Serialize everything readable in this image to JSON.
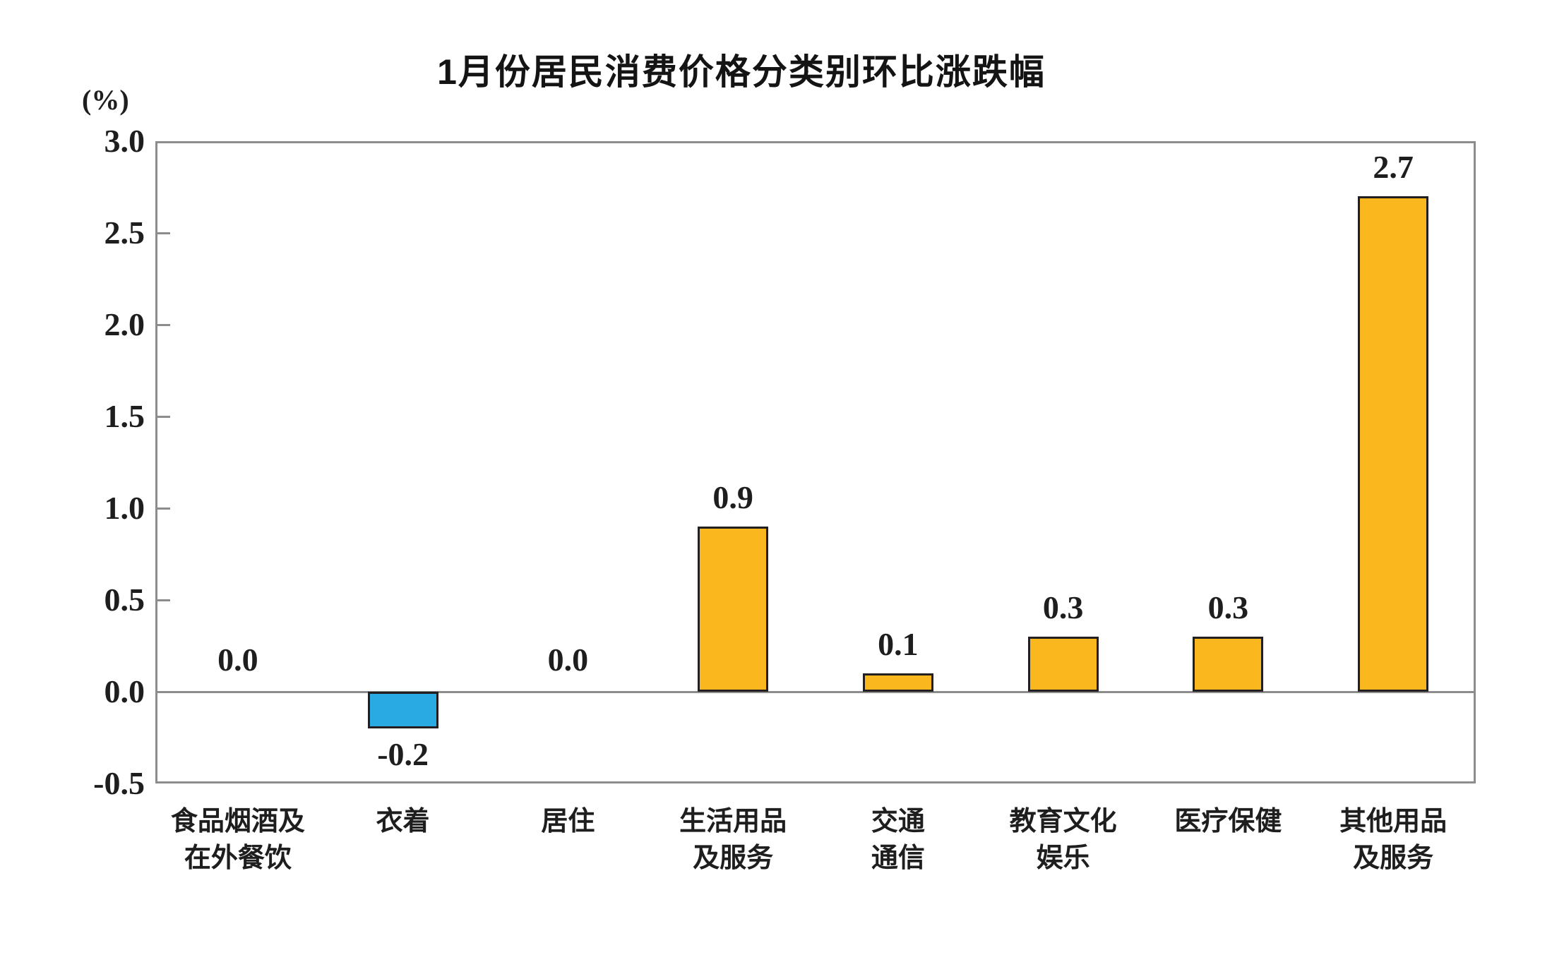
{
  "chart_data": {
    "type": "bar",
    "title": "1月份居民消费价格分类别环比涨跌幅",
    "unit_label": "(%)",
    "categories": [
      "食品烟酒及\n在外餐饮",
      "衣着",
      "居住",
      "生活用品\n及服务",
      "交通\n通信",
      "教育文化\n娱乐",
      "医疗保健",
      "其他用品\n及服务"
    ],
    "values": [
      0.0,
      -0.2,
      0.0,
      0.9,
      0.1,
      0.3,
      0.3,
      2.7
    ],
    "value_labels": [
      "0.0",
      "-0.2",
      "0.0",
      "0.9",
      "0.1",
      "0.3",
      "0.3",
      "2.7"
    ],
    "y_ticks": [
      3.0,
      2.5,
      2.0,
      1.5,
      1.0,
      0.5,
      0.0,
      -0.5
    ],
    "y_tick_labels": [
      "3.0",
      "2.5",
      "2.0",
      "1.5",
      "1.0",
      "0.5",
      "0.0",
      "-0.5"
    ],
    "ylim": [
      -0.5,
      3.0
    ],
    "grid": false,
    "legend": null,
    "colors": {
      "bar_positive": "#FBB71E",
      "bar_negative": "#29AAE2",
      "bar_border": "#231F20",
      "axis_frame": "#8C8C8C",
      "text": "#1E1E1E"
    }
  }
}
